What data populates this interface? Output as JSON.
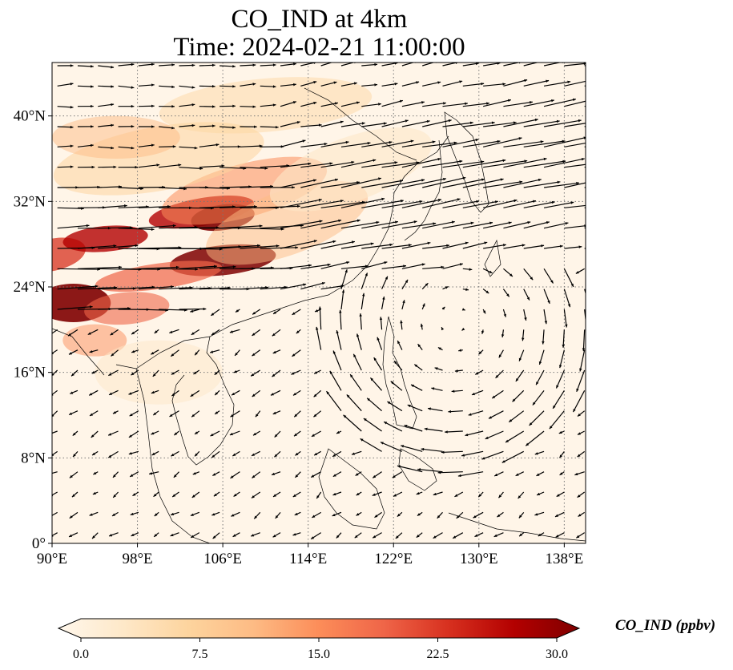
{
  "title": {
    "line1": "CO_IND at 4km",
    "line2": "Time: 2024-02-21 11:00:00"
  },
  "map": {
    "extent": {
      "lon": [
        90,
        140
      ],
      "lat": [
        0,
        45
      ]
    },
    "lon_ticks": [
      90,
      98,
      106,
      114,
      122,
      130,
      138
    ],
    "lon_tick_labels": [
      "90°E",
      "98°E",
      "106°E",
      "114°E",
      "122°E",
      "130°E",
      "138°E"
    ],
    "lat_ticks": [
      0,
      8,
      16,
      24,
      32,
      40
    ],
    "lat_tick_labels": [
      "0°",
      "8°N",
      "16°N",
      "24°N",
      "32°N",
      "40°N"
    ],
    "grid": true,
    "field_variable": "CO_IND",
    "wind_vectors": true
  },
  "colorbar": {
    "label": "CO_IND (ppbv)",
    "tick_values": [
      0,
      7.5,
      15,
      22.5,
      30
    ],
    "tick_labels": [
      "0.0",
      "7.5",
      "15.0",
      "22.5",
      "30.0"
    ],
    "range": [
      0,
      30
    ],
    "extend": "both",
    "colormap": "OrRd",
    "colors": [
      "#fff7ec",
      "#fee8c8",
      "#fdd49e",
      "#fdbb84",
      "#fc8d59",
      "#ef6548",
      "#d7301f",
      "#b30000",
      "#7f0000"
    ]
  }
}
